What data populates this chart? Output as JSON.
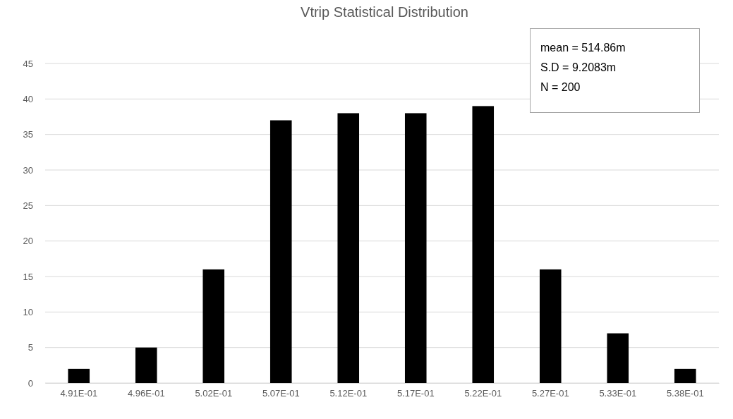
{
  "chart_data": {
    "type": "bar",
    "title": "Vtrip Statistical Distribution",
    "categories": [
      "4.91E-01",
      "4.96E-01",
      "5.02E-01",
      "5.07E-01",
      "5.12E-01",
      "5.17E-01",
      "5.22E-01",
      "5.27E-01",
      "5.33E-01",
      "5.38E-01"
    ],
    "values": [
      2,
      5,
      16,
      37,
      38,
      38,
      39,
      16,
      7,
      2
    ],
    "color": "#000000",
    "ylim": [
      0,
      45
    ],
    "yticks": [
      0,
      5,
      10,
      15,
      20,
      25,
      30,
      35,
      40,
      45
    ],
    "grid": "y",
    "annotations": [
      "mean = 514.86m",
      "S.D = 9.2083m",
      "N = 200"
    ]
  }
}
